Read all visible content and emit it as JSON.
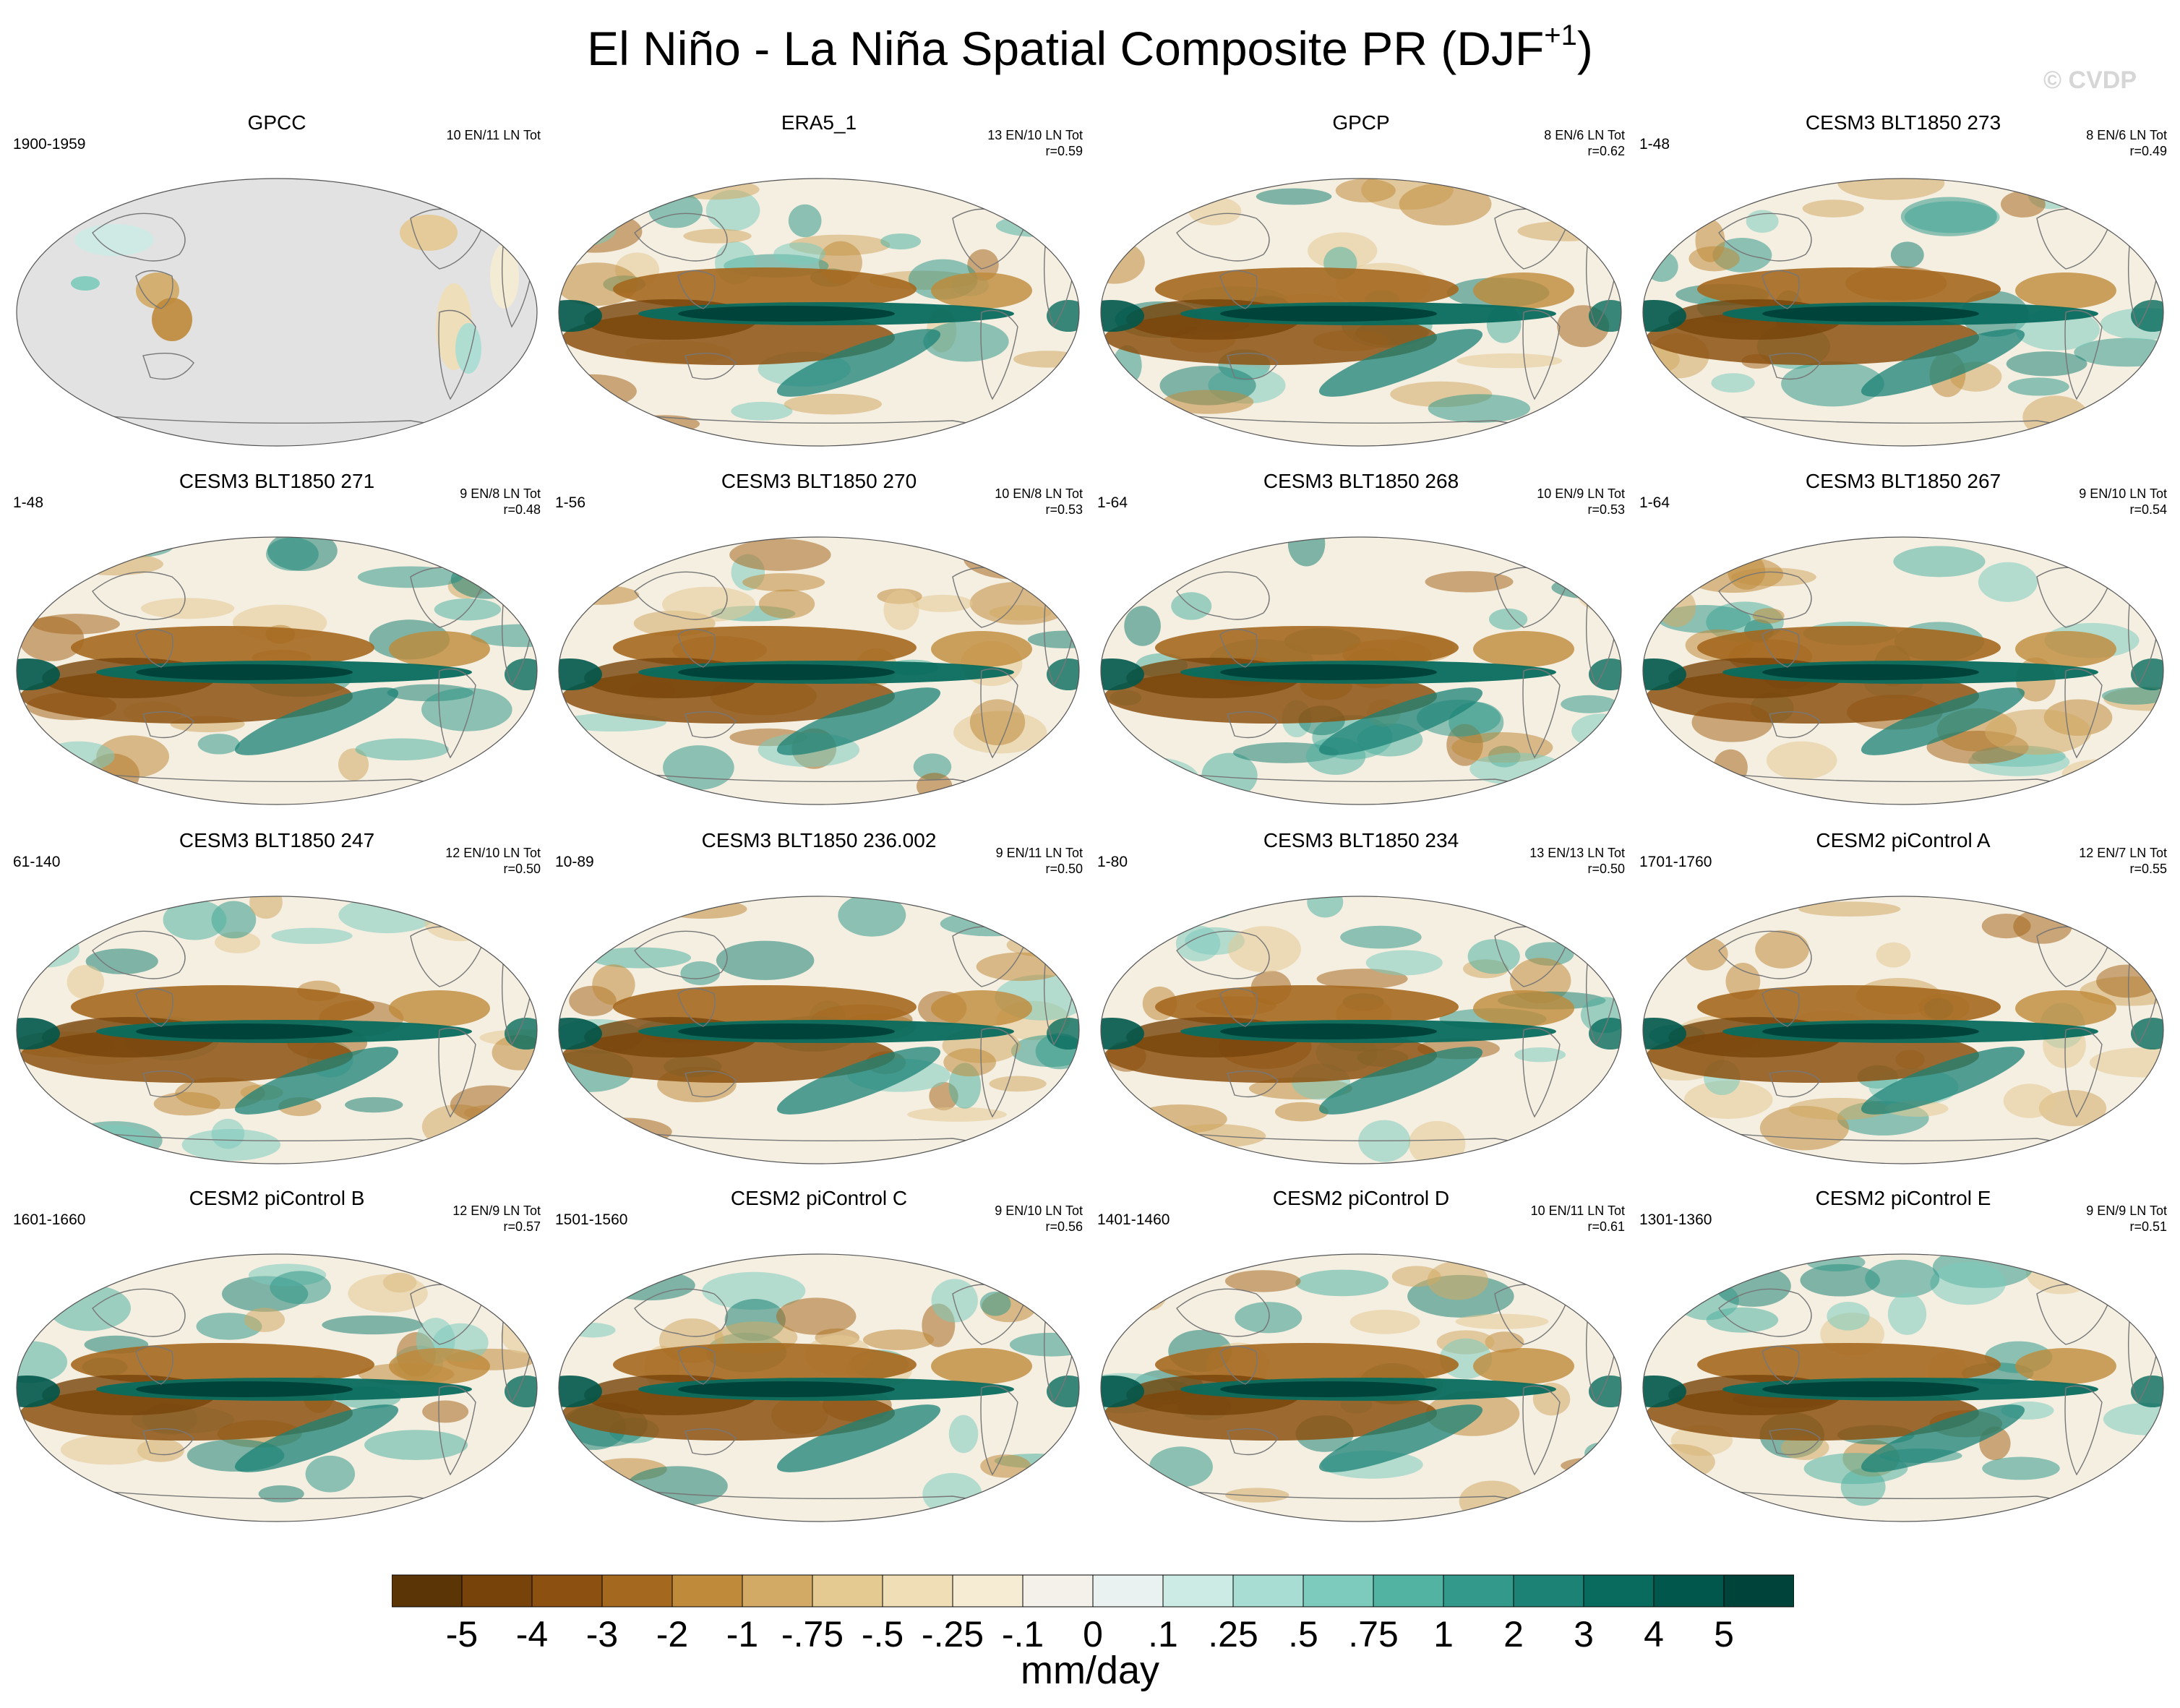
{
  "title": {
    "main": "El Niño - La Niña Spatial Composite PR (DJF",
    "superscript": "+1",
    "close": ")"
  },
  "watermark": "© CVDP",
  "panels": [
    {
      "title": "GPCC",
      "years": "1900-1959",
      "count": "10 EN/11 LN Tot",
      "r": "",
      "fill": "land"
    },
    {
      "title": "ERA5_1",
      "years": "",
      "count": "13 EN/10 LN Tot",
      "r": "r=0.59",
      "fill": "full"
    },
    {
      "title": "GPCP",
      "years": "",
      "count": "8 EN/6 LN Tot",
      "r": "r=0.62",
      "fill": "full"
    },
    {
      "title": "CESM3 BLT1850 273",
      "years": "1-48",
      "count": "8 EN/6 LN Tot",
      "r": "r=0.49",
      "fill": "full"
    },
    {
      "title": "CESM3 BLT1850 271",
      "years": "1-48",
      "count": "9 EN/8 LN Tot",
      "r": "r=0.48",
      "fill": "full"
    },
    {
      "title": "CESM3 BLT1850 270",
      "years": "1-56",
      "count": "10 EN/8 LN Tot",
      "r": "r=0.53",
      "fill": "full"
    },
    {
      "title": "CESM3 BLT1850 268",
      "years": "1-64",
      "count": "10 EN/9 LN Tot",
      "r": "r=0.53",
      "fill": "full"
    },
    {
      "title": "CESM3 BLT1850 267",
      "years": "1-64",
      "count": "9 EN/10 LN Tot",
      "r": "r=0.54",
      "fill": "full"
    },
    {
      "title": "CESM3 BLT1850 247",
      "years": "61-140",
      "count": "12 EN/10 LN Tot",
      "r": "r=0.50",
      "fill": "full"
    },
    {
      "title": "CESM3 BLT1850 236.002",
      "years": "10-89",
      "count": "9 EN/11 LN Tot",
      "r": "r=0.50",
      "fill": "full"
    },
    {
      "title": "CESM3 BLT1850 234",
      "years": "1-80",
      "count": "13 EN/13 LN Tot",
      "r": "r=0.50",
      "fill": "full"
    },
    {
      "title": "CESM2 piControl A",
      "years": "1701-1760",
      "count": "12 EN/7 LN Tot",
      "r": "r=0.55",
      "fill": "full"
    },
    {
      "title": "CESM2 piControl B",
      "years": "1601-1660",
      "count": "12 EN/9 LN Tot",
      "r": "r=0.57",
      "fill": "full"
    },
    {
      "title": "CESM2 piControl C",
      "years": "1501-1560",
      "count": "9 EN/10 LN Tot",
      "r": "r=0.56",
      "fill": "full"
    },
    {
      "title": "CESM2 piControl D",
      "years": "1401-1460",
      "count": "10 EN/11 LN Tot",
      "r": "r=0.61",
      "fill": "full"
    },
    {
      "title": "CESM2 piControl E",
      "years": "1301-1360",
      "count": "9 EN/9 LN Tot",
      "r": "r=0.51",
      "fill": "full"
    }
  ],
  "colorbar": {
    "colors": [
      "#5b3505",
      "#77430a",
      "#8c5110",
      "#a5681f",
      "#bf8a3a",
      "#d2aa65",
      "#e4c991",
      "#f0deb6",
      "#f6ecd3",
      "#f4f1ea",
      "#e9f2f0",
      "#cdebe5",
      "#a7ddd3",
      "#7ccbbd",
      "#52b3a3",
      "#33998b",
      "#1b8275",
      "#086b5e",
      "#01574b",
      "#00433a"
    ],
    "labels": [
      "-5",
      "-4",
      "-3",
      "-2",
      "-1",
      "-.75",
      "-.5",
      "-.25",
      "-.1",
      "0",
      ".1",
      ".25",
      ".5",
      ".75",
      "1",
      "2",
      "3",
      "4",
      "5"
    ],
    "units": "mm/day"
  }
}
